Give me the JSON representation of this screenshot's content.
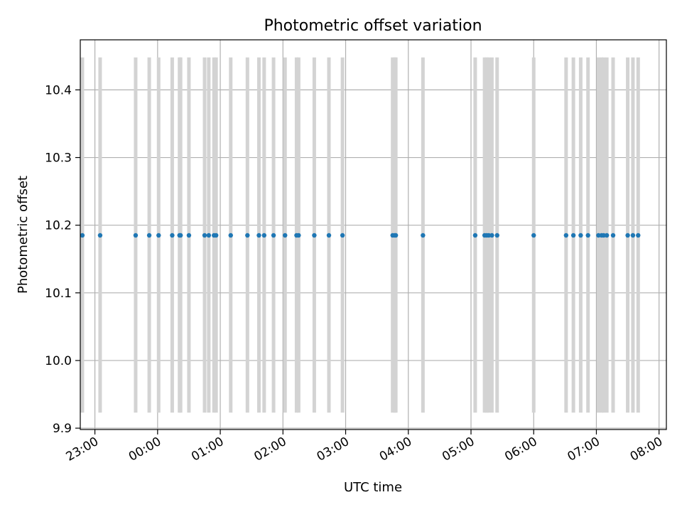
{
  "chart_data": {
    "type": "scatter",
    "title": "Photometric offset variation",
    "xlabel": "UTC time",
    "ylabel": "Photometric offset",
    "xlim": [
      "22:46",
      "08:07"
    ],
    "ylim": [
      9.898,
      10.474
    ],
    "xticks": [
      "23:00",
      "00:00",
      "01:00",
      "02:00",
      "03:00",
      "04:00",
      "05:00",
      "06:00",
      "07:00",
      "08:00"
    ],
    "yticks": [
      "9.9",
      "10.0",
      "10.1",
      "10.2",
      "10.3",
      "10.4"
    ],
    "grid": true,
    "errorbar_low": 9.923,
    "errorbar_high": 10.448,
    "series": [
      {
        "color": "#1f77b4",
        "errorbar_color": "#d3d3d3",
        "points": [
          {
            "x": "22:48",
            "y": 10.185
          },
          {
            "x": "23:05",
            "y": 10.185
          },
          {
            "x": "23:39",
            "y": 10.185
          },
          {
            "x": "23:52",
            "y": 10.185
          },
          {
            "x": "00:01",
            "y": 10.185
          },
          {
            "x": "00:14",
            "y": 10.185
          },
          {
            "x": "00:21",
            "y": 10.185
          },
          {
            "x": "00:22",
            "y": 10.185
          },
          {
            "x": "00:30",
            "y": 10.185
          },
          {
            "x": "00:45",
            "y": 10.185
          },
          {
            "x": "00:49",
            "y": 10.185
          },
          {
            "x": "00:54",
            "y": 10.185
          },
          {
            "x": "00:56",
            "y": 10.185
          },
          {
            "x": "01:10",
            "y": 10.185
          },
          {
            "x": "01:26",
            "y": 10.185
          },
          {
            "x": "01:37",
            "y": 10.185
          },
          {
            "x": "01:42",
            "y": 10.185
          },
          {
            "x": "01:51",
            "y": 10.185
          },
          {
            "x": "02:02",
            "y": 10.185
          },
          {
            "x": "02:13",
            "y": 10.185
          },
          {
            "x": "02:15",
            "y": 10.185
          },
          {
            "x": "02:30",
            "y": 10.185
          },
          {
            "x": "02:44",
            "y": 10.185
          },
          {
            "x": "02:57",
            "y": 10.185
          },
          {
            "x": "03:45",
            "y": 10.185
          },
          {
            "x": "03:47",
            "y": 10.185
          },
          {
            "x": "03:48",
            "y": 10.185
          },
          {
            "x": "04:14",
            "y": 10.185
          },
          {
            "x": "05:04",
            "y": 10.185
          },
          {
            "x": "05:13",
            "y": 10.185
          },
          {
            "x": "05:15",
            "y": 10.185
          },
          {
            "x": "05:17",
            "y": 10.185
          },
          {
            "x": "05:20",
            "y": 10.185
          },
          {
            "x": "05:25",
            "y": 10.185
          },
          {
            "x": "06:00",
            "y": 10.185
          },
          {
            "x": "06:31",
            "y": 10.185
          },
          {
            "x": "06:38",
            "y": 10.185
          },
          {
            "x": "06:45",
            "y": 10.185
          },
          {
            "x": "06:52",
            "y": 10.185
          },
          {
            "x": "07:02",
            "y": 10.185
          },
          {
            "x": "07:05",
            "y": 10.185
          },
          {
            "x": "07:07",
            "y": 10.185
          },
          {
            "x": "07:10",
            "y": 10.185
          },
          {
            "x": "07:16",
            "y": 10.185
          },
          {
            "x": "07:30",
            "y": 10.185
          },
          {
            "x": "07:35",
            "y": 10.185
          },
          {
            "x": "07:40",
            "y": 10.185
          }
        ]
      }
    ]
  }
}
